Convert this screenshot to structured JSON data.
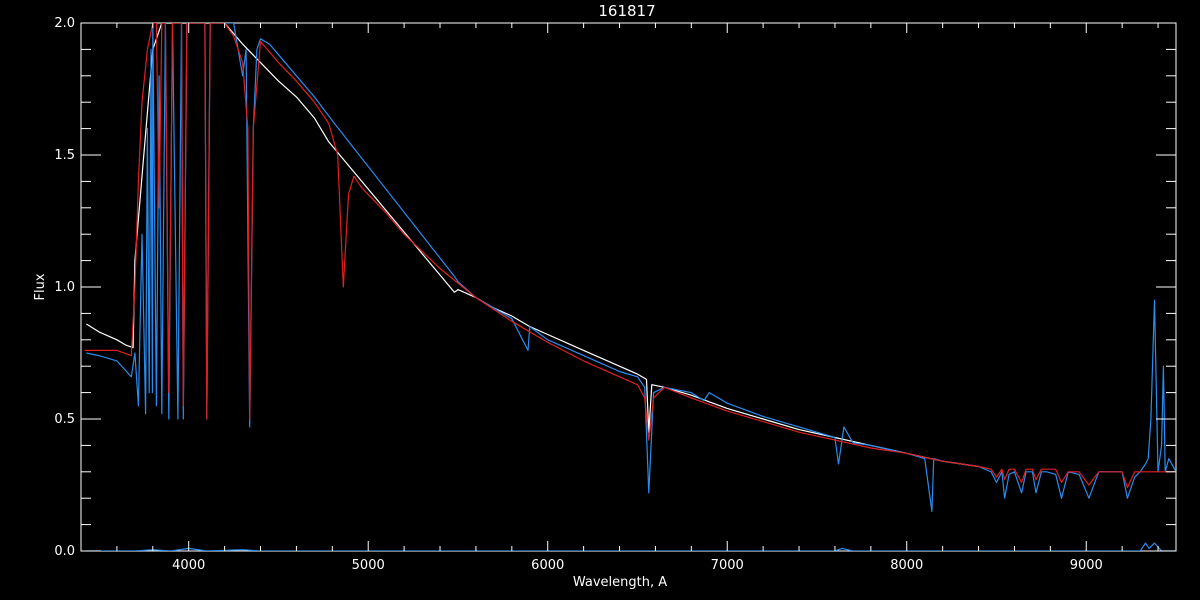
{
  "chart_data": {
    "type": "line",
    "title": "161817",
    "xlabel": "Wavelength, A",
    "ylabel": "Flux",
    "xlim": [
      3400,
      9500
    ],
    "ylim": [
      0.0,
      2.0
    ],
    "x_ticks": [
      4000,
      5000,
      6000,
      7000,
      8000,
      9000
    ],
    "x_tick_labels": [
      "4000",
      "5000",
      "6000",
      "7000",
      "8000",
      "9000"
    ],
    "y_ticks": [
      0.0,
      0.5,
      1.0,
      1.5,
      2.0
    ],
    "y_tick_labels": [
      "0.0",
      "0.5",
      "1.0",
      "1.5",
      "2.0"
    ],
    "grid": false,
    "colors": {
      "background": "#000000",
      "axes": "#ffffff",
      "model": "#e02020",
      "observed_blue": "#2a8cf0",
      "observed_white": "#ffffff"
    },
    "series": [
      {
        "color": "#e02020",
        "x": [
          3420,
          3600,
          3680,
          3700,
          3720,
          3740,
          3770,
          3800,
          3820,
          3835,
          3850,
          3870,
          3889,
          3910,
          3940,
          3960,
          3970,
          3990,
          4020,
          4060,
          4090,
          4101,
          4120,
          4150,
          4200,
          4250,
          4300,
          4330,
          4340,
          4360,
          4400,
          4500,
          4600,
          4700,
          4780,
          4830,
          4861,
          4890,
          4920,
          4960,
          5000,
          5100,
          5200,
          5400,
          5600,
          5800,
          6000,
          6200,
          6400,
          6500,
          6540,
          6563,
          6590,
          6650,
          6800,
          7000,
          7200,
          7400,
          7600,
          7800,
          8000,
          8200,
          8400,
          8470,
          8500,
          8530,
          8545,
          8570,
          8600,
          8640,
          8665,
          8700,
          8720,
          8750,
          8780,
          8830,
          8862,
          8900,
          8960,
          9015,
          9070,
          9200,
          9229,
          9270,
          9400,
          9500
        ],
        "values": [
          0.76,
          0.76,
          0.74,
          1.0,
          1.4,
          1.7,
          1.9,
          2.0,
          2.0,
          1.3,
          2.0,
          2.0,
          0.6,
          2.0,
          2.0,
          2.0,
          0.55,
          2.0,
          2.0,
          2.0,
          2.0,
          0.5,
          2.0,
          2.0,
          2.0,
          1.95,
          1.85,
          1.6,
          0.5,
          1.6,
          1.93,
          1.85,
          1.78,
          1.7,
          1.62,
          1.5,
          1.0,
          1.35,
          1.42,
          1.38,
          1.35,
          1.28,
          1.2,
          1.07,
          0.96,
          0.87,
          0.79,
          0.72,
          0.66,
          0.63,
          0.58,
          0.42,
          0.58,
          0.62,
          0.58,
          0.53,
          0.49,
          0.45,
          0.42,
          0.39,
          0.37,
          0.34,
          0.32,
          0.31,
          0.28,
          0.31,
          0.27,
          0.31,
          0.31,
          0.26,
          0.31,
          0.31,
          0.27,
          0.31,
          0.31,
          0.31,
          0.26,
          0.3,
          0.3,
          0.25,
          0.3,
          0.3,
          0.24,
          0.3,
          0.3,
          0.3
        ]
      },
      {
        "color": "#ffffff",
        "x": [
          3430,
          3500,
          3600,
          3650,
          3690,
          3700,
          3750,
          3800,
          3850,
          3900,
          3950,
          4000,
          4100,
          4200,
          4300,
          4400,
          4500,
          4600,
          4700,
          4780,
          5480,
          5500,
          5600,
          5700,
          5800,
          5900,
          6000,
          6100,
          6200,
          6300,
          6400,
          6500,
          6550,
          6563,
          6580,
          6650,
          6800,
          7000,
          7200,
          7400,
          7600,
          7800,
          8000,
          8200,
          8300,
          8400
        ],
        "values": [
          0.86,
          0.83,
          0.8,
          0.78,
          0.77,
          1.1,
          1.5,
          1.9,
          2.0,
          2.0,
          2.0,
          2.0,
          2.0,
          2.0,
          1.92,
          1.85,
          1.78,
          1.72,
          1.64,
          1.55,
          0.98,
          0.99,
          0.96,
          0.92,
          0.89,
          0.85,
          0.82,
          0.79,
          0.76,
          0.73,
          0.7,
          0.67,
          0.65,
          0.45,
          0.63,
          0.62,
          0.59,
          0.54,
          0.5,
          0.46,
          0.43,
          0.4,
          0.37,
          0.34,
          0.33,
          0.32
        ]
      },
      {
        "color": "#2a8cf0",
        "x": [
          3430,
          3500,
          3600,
          3680,
          3700,
          3720,
          3740,
          3760,
          3770,
          3780,
          3790,
          3798,
          3800,
          3820,
          3835,
          3850,
          3870,
          3889,
          3910,
          3940,
          3960,
          3970,
          3990,
          4020,
          4060,
          4090,
          4101,
          4120,
          4150,
          4200,
          4250,
          4300,
          4320,
          4340,
          4360,
          4380,
          4400,
          4450,
          4500,
          4600,
          4700,
          4800,
          5480,
          5500,
          5600,
          5700,
          5800,
          5890,
          5900,
          6000,
          6100,
          6200,
          6300,
          6400,
          6500,
          6540,
          6563,
          6590,
          6650,
          6800,
          6870,
          6900,
          7000,
          7200,
          7400,
          7600,
          7620,
          7650,
          7700,
          7800,
          8000,
          8100,
          8140,
          8150,
          8200,
          8300,
          8400,
          8470,
          8500,
          8530,
          8545,
          8570,
          8600,
          8640,
          8665,
          8700,
          8720,
          8750,
          8780,
          8830,
          8862,
          8900,
          8960,
          9015,
          9070,
          9200,
          9229,
          9270,
          9300,
          9330,
          9345,
          9360,
          9380,
          9400,
          9420,
          9430,
          9440,
          9460,
          9500
        ],
        "values": [
          0.75,
          0.74,
          0.72,
          0.66,
          0.75,
          0.55,
          1.2,
          0.52,
          1.6,
          0.6,
          1.9,
          0.6,
          2.0,
          0.55,
          1.8,
          0.52,
          2.0,
          0.5,
          2.0,
          0.5,
          2.0,
          0.5,
          2.0,
          2.0,
          2.0,
          2.0,
          0.5,
          2.0,
          2.0,
          2.0,
          2.0,
          1.8,
          1.9,
          0.47,
          1.6,
          1.9,
          1.94,
          1.92,
          1.88,
          1.8,
          1.72,
          1.63,
          1.04,
          1.02,
          0.96,
          0.92,
          0.88,
          0.76,
          0.85,
          0.8,
          0.77,
          0.74,
          0.71,
          0.68,
          0.66,
          0.62,
          0.22,
          0.6,
          0.62,
          0.6,
          0.57,
          0.6,
          0.56,
          0.51,
          0.47,
          0.43,
          0.33,
          0.47,
          0.41,
          0.4,
          0.37,
          0.35,
          0.15,
          0.35,
          0.34,
          0.33,
          0.32,
          0.3,
          0.26,
          0.3,
          0.2,
          0.29,
          0.3,
          0.22,
          0.3,
          0.3,
          0.22,
          0.3,
          0.3,
          0.29,
          0.2,
          0.3,
          0.29,
          0.2,
          0.3,
          0.3,
          0.2,
          0.28,
          0.3,
          0.33,
          0.35,
          0.5,
          0.95,
          0.3,
          0.4,
          0.7,
          0.3,
          0.35,
          0.3
        ]
      }
    ],
    "baseline_series": {
      "color": "#2a8cf0",
      "x": [
        3430,
        3700,
        3800,
        3900,
        4000,
        4100,
        4300,
        4400,
        6000,
        7600,
        7640,
        7700,
        9300,
        9330,
        9350,
        9380,
        9420,
        9500
      ],
      "values": [
        0.0,
        0.0,
        0.005,
        0.0,
        0.01,
        0.0,
        0.005,
        0.0,
        0.0,
        0.0,
        0.01,
        0.0,
        0.0,
        0.03,
        0.01,
        0.03,
        0.0,
        0.0
      ]
    }
  }
}
